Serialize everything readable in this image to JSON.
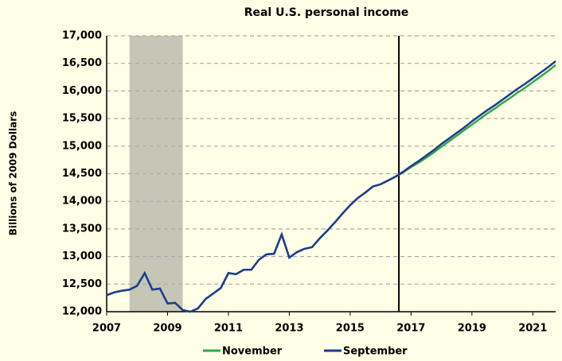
{
  "chart_data": {
    "type": "line",
    "title": "Real U.S. personal income",
    "y_label": "Billions of 2009 Dollars",
    "x": [
      2007,
      2007.25,
      2007.5,
      2007.75,
      2008,
      2008.25,
      2008.5,
      2008.75,
      2009,
      2009.25,
      2009.5,
      2009.75,
      2010,
      2010.25,
      2010.5,
      2010.75,
      2011,
      2011.25,
      2011.5,
      2011.75,
      2012,
      2012.25,
      2012.5,
      2012.75,
      2013,
      2013.25,
      2013.5,
      2013.75,
      2014,
      2014.25,
      2014.5,
      2014.75,
      2015,
      2015.25,
      2015.5,
      2015.75,
      2016,
      2016.25,
      2016.5,
      2016.75,
      2017,
      2017.25,
      2017.5,
      2017.75,
      2018,
      2018.25,
      2018.5,
      2018.75,
      2019,
      2019.25,
      2019.5,
      2019.75,
      2020,
      2020.25,
      2020.5,
      2020.75,
      2021,
      2021.25,
      2021.5,
      2021.75
    ],
    "series": [
      {
        "name": "November",
        "color": "#2eaa4a",
        "values": [
          12300,
          12350,
          12380,
          12400,
          12470,
          12700,
          12400,
          12420,
          12150,
          12160,
          12030,
          12000,
          12060,
          12230,
          12330,
          12430,
          12700,
          12680,
          12760,
          12760,
          12940,
          13040,
          13050,
          13400,
          12980,
          13080,
          13140,
          13170,
          13330,
          13470,
          13620,
          13780,
          13930,
          14060,
          14160,
          14270,
          14310,
          14380,
          14450,
          14530,
          14620,
          14700,
          14790,
          14890,
          14990,
          15090,
          15190,
          15290,
          15390,
          15490,
          15590,
          15680,
          15780,
          15870,
          15970,
          16060,
          16160,
          16260,
          16360,
          16470
        ]
      },
      {
        "name": "September",
        "color": "#1f3b8f",
        "values": [
          12300,
          12350,
          12380,
          12400,
          12470,
          12700,
          12400,
          12420,
          12150,
          12160,
          12030,
          12000,
          12060,
          12230,
          12330,
          12430,
          12700,
          12680,
          12760,
          12760,
          12940,
          13040,
          13050,
          13400,
          12980,
          13080,
          13140,
          13170,
          13330,
          13470,
          13620,
          13780,
          13930,
          14060,
          14160,
          14270,
          14310,
          14380,
          14450,
          14540,
          14640,
          14730,
          14830,
          14930,
          15040,
          15140,
          15240,
          15340,
          15450,
          15550,
          15650,
          15740,
          15840,
          15940,
          16040,
          16130,
          16230,
          16330,
          16430,
          16540
        ]
      }
    ],
    "xlim": [
      2007,
      2021.75
    ],
    "xticks": [
      2007,
      2009,
      2011,
      2013,
      2015,
      2017,
      2019,
      2021
    ],
    "ylim": [
      12000,
      17000
    ],
    "yticks": [
      {
        "value": 12000,
        "label": "12,000"
      },
      {
        "value": 12500,
        "label": "12,500"
      },
      {
        "value": 13000,
        "label": "13,000"
      },
      {
        "value": 13500,
        "label": "13,500"
      },
      {
        "value": 14000,
        "label": "14,000"
      },
      {
        "value": 14500,
        "label": "14,500"
      },
      {
        "value": 15000,
        "label": "15,000"
      },
      {
        "value": 15500,
        "label": "15,500"
      },
      {
        "value": 16000,
        "label": "16,000"
      },
      {
        "value": 16500,
        "label": "16,500"
      },
      {
        "value": 17000,
        "label": "17,000"
      }
    ],
    "grid": true,
    "shaded_regions": [
      [
        2007.75,
        2009.5
      ]
    ],
    "shade_color": "#c6c6b6",
    "vline": 2016.6,
    "legend": "bottom"
  }
}
